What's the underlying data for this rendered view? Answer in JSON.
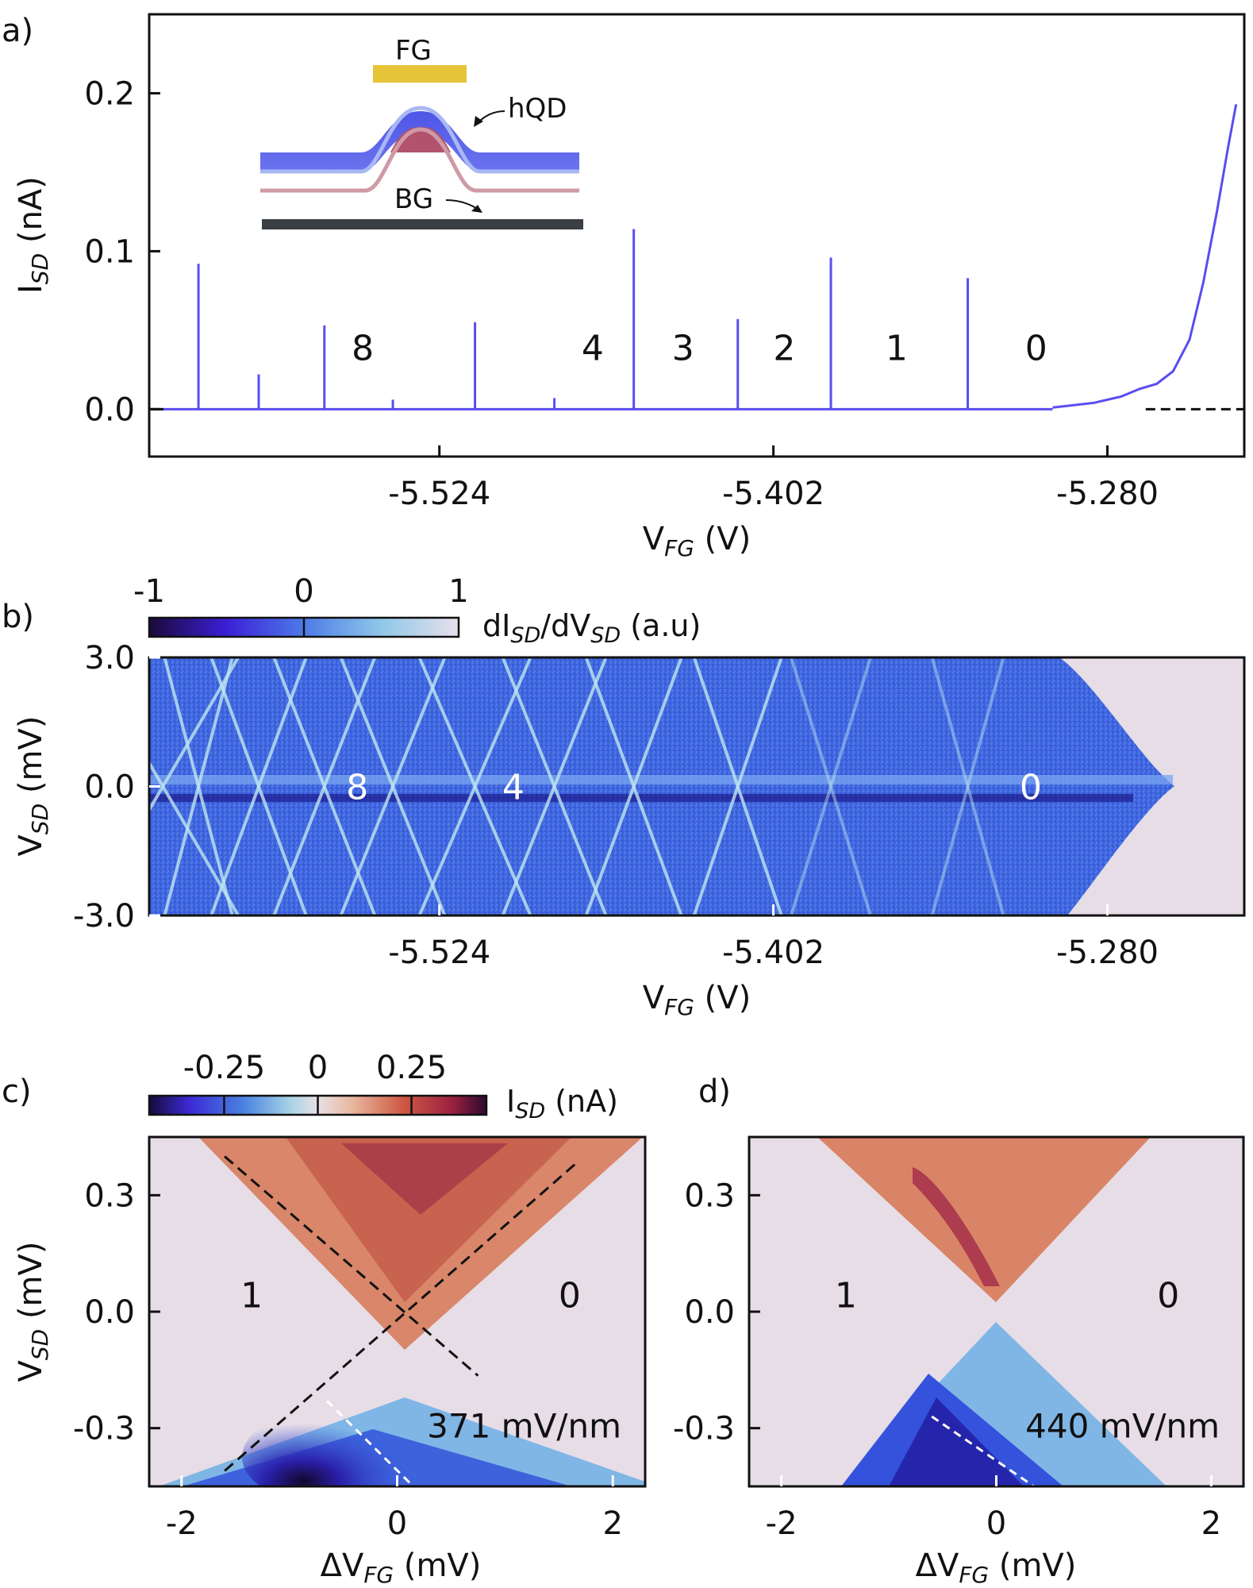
{
  "colors": {
    "trace": "#5a4df0",
    "fg_gate": "#e6c43a",
    "band_blue": "#5b63e8",
    "band_outline": "#a9b8f3",
    "band_pink": "#cf9aa6",
    "dot_fill": "#b2536d",
    "back_gate": "#3a3f44",
    "map_background": "#e6dde6",
    "map_blue": "#3d64e0"
  },
  "chart_data": [
    {
      "id": "a",
      "type": "line",
      "panel_label": "a)",
      "xlabel_main": "V",
      "xlabel_sub": "FG",
      "xlabel_unit": " (V)",
      "ylabel_main": "I",
      "ylabel_sub": "SD",
      "ylabel_unit": " (nA)",
      "xlim": [
        -5.63,
        -5.23
      ],
      "ylim": [
        -0.03,
        0.25
      ],
      "xticks": [
        {
          "value": -5.524,
          "label": "-5.524"
        },
        {
          "value": -5.402,
          "label": "-5.402"
        },
        {
          "value": -5.28,
          "label": "-5.280"
        }
      ],
      "yticks": [
        {
          "value": 0.0,
          "label": "0.0"
        },
        {
          "value": 0.1,
          "label": "0.1"
        },
        {
          "value": 0.2,
          "label": "0.2"
        }
      ],
      "peaks": [
        {
          "x": -5.612,
          "y": 0.092
        },
        {
          "x": -5.59,
          "y": 0.022
        },
        {
          "x": -5.566,
          "y": 0.053
        },
        {
          "x": -5.541,
          "y": 0.006
        },
        {
          "x": -5.511,
          "y": 0.055
        },
        {
          "x": -5.482,
          "y": 0.007
        },
        {
          "x": -5.453,
          "y": 0.114
        },
        {
          "x": -5.415,
          "y": 0.057
        },
        {
          "x": -5.381,
          "y": 0.096
        },
        {
          "x": -5.331,
          "y": 0.083
        }
      ],
      "onset_curve": [
        {
          "x": -5.3,
          "y": 0.001
        },
        {
          "x": -5.285,
          "y": 0.004
        },
        {
          "x": -5.275,
          "y": 0.008
        },
        {
          "x": -5.268,
          "y": 0.013
        },
        {
          "x": -5.262,
          "y": 0.016
        },
        {
          "x": -5.256,
          "y": 0.024
        },
        {
          "x": -5.25,
          "y": 0.044
        },
        {
          "x": -5.245,
          "y": 0.08
        },
        {
          "x": -5.24,
          "y": 0.125
        },
        {
          "x": -5.236,
          "y": 0.165
        },
        {
          "x": -5.233,
          "y": 0.193
        }
      ],
      "baseline_dashed": {
        "x_start": -5.266,
        "x_end": -5.23,
        "y": 0.0
      },
      "occupancy_labels": [
        {
          "text": "8",
          "x": -5.552,
          "y": 0.038
        },
        {
          "text": "4",
          "x": -5.468,
          "y": 0.038
        },
        {
          "text": "3",
          "x": -5.435,
          "y": 0.038
        },
        {
          "text": "2",
          "x": -5.398,
          "y": 0.038
        },
        {
          "text": "1",
          "x": -5.357,
          "y": 0.038
        },
        {
          "text": "0",
          "x": -5.306,
          "y": 0.038
        }
      ],
      "inset": {
        "fg_label": "FG",
        "hqd_label": "hQD",
        "bg_label": "BG"
      }
    },
    {
      "id": "b",
      "type": "heatmap",
      "panel_label": "b)",
      "xlabel_main": "V",
      "xlabel_sub": "FG",
      "xlabel_unit": " (V)",
      "ylabel_main": "V",
      "ylabel_sub": "SD",
      "ylabel_unit": " (mV)",
      "xlim": [
        -5.63,
        -5.23
      ],
      "ylim": [
        -3.0,
        3.0
      ],
      "xticks": [
        {
          "value": -5.524,
          "label": "-5.524"
        },
        {
          "value": -5.402,
          "label": "-5.402"
        },
        {
          "value": -5.28,
          "label": "-5.280"
        }
      ],
      "yticks": [
        {
          "value": -3.0,
          "label": "-3.0"
        },
        {
          "value": 0.0,
          "label": "0.0"
        },
        {
          "value": 3.0,
          "label": "3.0"
        }
      ],
      "colorbar": {
        "label_main": "dI",
        "label_sub1": "SD",
        "label_mid": "/dV",
        "label_sub2": "SD",
        "label_unit": " (a.u)",
        "ticks": [
          {
            "value": -1,
            "label": "-1"
          },
          {
            "value": 0,
            "label": "0"
          },
          {
            "value": 1,
            "label": "1"
          }
        ],
        "stops": [
          "#1a0a3a",
          "#3b1fd6",
          "#4d7be8",
          "#8fc8e8",
          "#e8e0ec"
        ]
      },
      "degeneracy_points": [
        -5.625,
        -5.612,
        -5.59,
        -5.566,
        -5.541,
        -5.511,
        -5.482,
        -5.453,
        -5.415,
        -5.381,
        -5.331
      ],
      "conduction_edge": -5.265,
      "occupancy_labels": [
        {
          "text": "8",
          "x": -5.554,
          "y": 0.0
        },
        {
          "text": "4",
          "x": -5.497,
          "y": 0.0
        },
        {
          "text": "0",
          "x": -5.308,
          "y": 0.0
        }
      ]
    },
    {
      "id": "c",
      "type": "heatmap",
      "panel_label": "c)",
      "xlabel_main": "ΔV",
      "xlabel_sub": "FG",
      "xlabel_unit": " (mV)",
      "ylabel_main": "V",
      "ylabel_sub": "SD",
      "ylabel_unit": " (mV)",
      "xlim": [
        -2.3,
        2.3
      ],
      "ylim": [
        -0.45,
        0.45
      ],
      "xticks": [
        {
          "value": -2,
          "label": "-2"
        },
        {
          "value": 0,
          "label": "0"
        },
        {
          "value": 2,
          "label": "2"
        }
      ],
      "yticks": [
        {
          "value": -0.3,
          "label": "-0.3"
        },
        {
          "value": 0.0,
          "label": "0.0"
        },
        {
          "value": 0.3,
          "label": "0.3"
        }
      ],
      "colorbar": {
        "label_main": "I",
        "label_sub1": "SD",
        "label_unit": " (nA)",
        "ticks": [
          {
            "value": -0.25,
            "label": "-0.25"
          },
          {
            "value": 0,
            "label": "0"
          },
          {
            "value": 0.25,
            "label": "0.25"
          }
        ],
        "stops": [
          "#160a3a",
          "#3b2ad6",
          "#4a82e0",
          "#a8d4e6",
          "#e8e0e6",
          "#e8b8a0",
          "#cf5a44",
          "#9a2040",
          "#2a0a30"
        ]
      },
      "field_annotation": "371 mV/nm",
      "diamond_center": [
        0.05,
        0.0
      ],
      "dashed_black_lines": [
        {
          "x0": -1.6,
          "y0": 0.4,
          "x1": 0.75,
          "y1": -0.165
        },
        {
          "x0": -1.6,
          "y0": -0.41,
          "x1": 1.65,
          "y1": 0.38
        }
      ],
      "dashed_white_line": {
        "x0": -0.65,
        "y0": -0.23,
        "x1": 0.15,
        "y1": -0.45
      },
      "occupancy_labels": [
        {
          "text": "1",
          "x": -1.35,
          "y": 0.04
        },
        {
          "text": "0",
          "x": 1.6,
          "y": 0.04
        }
      ]
    },
    {
      "id": "d",
      "type": "heatmap",
      "panel_label": "d)",
      "xlabel_main": "ΔV",
      "xlabel_sub": "FG",
      "xlabel_unit": " (mV)",
      "xlim": [
        -2.3,
        2.3
      ],
      "ylim": [
        -0.45,
        0.45
      ],
      "xticks": [
        {
          "value": -2,
          "label": "-2"
        },
        {
          "value": 0,
          "label": "0"
        },
        {
          "value": 2,
          "label": "2"
        }
      ],
      "yticks": [
        {
          "value": -0.3,
          "label": "-0.3"
        },
        {
          "value": 0.0,
          "label": "0.0"
        },
        {
          "value": 0.3,
          "label": "0.3"
        }
      ],
      "field_annotation": "440 mV/nm",
      "diamond_center": [
        0.0,
        0.0
      ],
      "dashed_white_line": {
        "x0": -0.6,
        "y0": -0.27,
        "x1": 0.35,
        "y1": -0.45
      },
      "occupancy_labels": [
        {
          "text": "1",
          "x": -1.4,
          "y": 0.04
        },
        {
          "text": "0",
          "x": 1.6,
          "y": 0.04
        }
      ]
    }
  ]
}
